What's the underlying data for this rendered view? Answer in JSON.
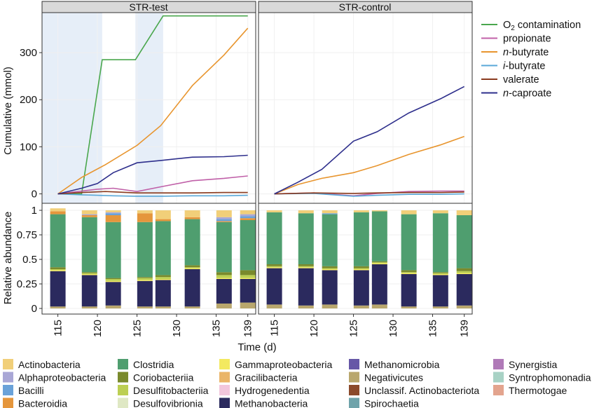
{
  "chart_data": [
    {
      "type": "line",
      "facets": [
        "STR-test",
        "STR-control"
      ],
      "ylabel": "Cumulative (mmol)",
      "xlim": [
        113,
        140
      ],
      "ylim": [
        -20,
        385
      ],
      "yticks": [
        0,
        100,
        200,
        300
      ],
      "shaded_x_ranges": {
        "STR-test": [
          [
            113,
            120.6
          ],
          [
            124.8,
            128.3
          ]
        ],
        "STR-control": []
      },
      "legend_position": "right",
      "series": [
        {
          "name": "O2 contamination",
          "label_main": "O",
          "label_sub": "2",
          "label_rest": " contamination",
          "italic_prefix": "",
          "color": "#4aa74d",
          "test": [
            [
              115,
              0
            ],
            [
              118,
              0
            ],
            [
              120.6,
              285
            ],
            [
              124.8,
              285
            ],
            [
              128.3,
              378
            ],
            [
              139,
              378
            ]
          ],
          "control": []
        },
        {
          "name": "propionate",
          "label_main": "",
          "label_sub": "",
          "label_rest": "propionate",
          "italic_prefix": "",
          "color": "#c060a8",
          "test": [
            [
              115,
              0
            ],
            [
              120,
              10
            ],
            [
              122,
              12
            ],
            [
              125,
              5
            ],
            [
              128,
              15
            ],
            [
              132,
              28
            ],
            [
              136,
              33
            ],
            [
              139,
              38
            ]
          ],
          "control": [
            [
              115,
              0
            ],
            [
              120,
              2
            ],
            [
              125,
              -4
            ],
            [
              128,
              1
            ],
            [
              132,
              5
            ],
            [
              136,
              6
            ],
            [
              139,
              6
            ]
          ]
        },
        {
          "name": "n-butyrate",
          "label_main": "",
          "label_sub": "",
          "label_rest": "-butyrate",
          "italic_prefix": "n",
          "color": "#e8952e",
          "test": [
            [
              115,
              0
            ],
            [
              118,
              35
            ],
            [
              121,
              62
            ],
            [
              125,
              103
            ],
            [
              128,
              145
            ],
            [
              132,
              230
            ],
            [
              136,
              295
            ],
            [
              139,
              352
            ]
          ],
          "control": [
            [
              115,
              0
            ],
            [
              118,
              20
            ],
            [
              121,
              33
            ],
            [
              125,
              45
            ],
            [
              128,
              60
            ],
            [
              132,
              84
            ],
            [
              136,
              104
            ],
            [
              139,
              122
            ]
          ]
        },
        {
          "name": "i-butyrate",
          "label_main": "",
          "label_sub": "",
          "label_rest": "-butyrate",
          "italic_prefix": "i",
          "color": "#5aa8d8",
          "test": [
            [
              115,
              0
            ],
            [
              118,
              -2
            ],
            [
              122,
              -4
            ],
            [
              125,
              -5
            ],
            [
              128,
              -5
            ],
            [
              132,
              -4
            ],
            [
              136,
              -4
            ],
            [
              139,
              -3
            ]
          ],
          "control": [
            [
              115,
              0
            ],
            [
              120,
              1
            ],
            [
              125,
              -5
            ],
            [
              128,
              -3
            ],
            [
              132,
              -1
            ],
            [
              136,
              -1
            ],
            [
              139,
              0
            ]
          ]
        },
        {
          "name": "valerate",
          "label_main": "",
          "label_sub": "",
          "label_rest": "valerate",
          "italic_prefix": "",
          "color": "#8a3a1e",
          "test": [
            [
              115,
              0
            ],
            [
              118,
              3
            ],
            [
              121,
              5
            ],
            [
              125,
              2
            ],
            [
              128,
              2
            ],
            [
              132,
              2
            ],
            [
              136,
              3
            ],
            [
              139,
              3
            ]
          ],
          "control": [
            [
              115,
              0
            ],
            [
              120,
              2
            ],
            [
              125,
              1
            ],
            [
              128,
              2
            ],
            [
              132,
              3
            ],
            [
              136,
              3
            ],
            [
              139,
              4
            ]
          ]
        },
        {
          "name": "n-caproate",
          "label_main": "",
          "label_sub": "",
          "label_rest": "-caproate",
          "italic_prefix": "n",
          "color": "#2e2f8c",
          "test": [
            [
              115,
              0
            ],
            [
              118,
              12
            ],
            [
              120,
              22
            ],
            [
              122,
              45
            ],
            [
              125,
              66
            ],
            [
              128,
              71
            ],
            [
              132,
              78
            ],
            [
              136,
              79
            ],
            [
              139,
              82
            ]
          ],
          "control": [
            [
              115,
              0
            ],
            [
              118,
              25
            ],
            [
              121,
              52
            ],
            [
              125,
              112
            ],
            [
              128,
              132
            ],
            [
              132,
              172
            ],
            [
              136,
              202
            ],
            [
              139,
              228
            ]
          ]
        }
      ]
    },
    {
      "type": "bar",
      "stacked": true,
      "facets": [
        "STR-test",
        "STR-control"
      ],
      "xlabel": "Time (d)",
      "ylabel": "Relative abundance",
      "xticks": [
        115,
        120,
        125,
        130,
        135,
        139
      ],
      "ylim": [
        0,
        1.05
      ],
      "yticks": [
        0,
        0.25,
        0.5,
        0.75,
        1
      ],
      "ytick_labels": [
        "0",
        "0.25",
        "0.5",
        "0.75",
        "1"
      ],
      "legend_position": "bottom",
      "categories": [
        "Actinobacteria",
        "Alphaproteobacteria",
        "Bacilli",
        "Bacteroidia",
        "Clostridia",
        "Coriobacteriia",
        "Desulfitobacteriia",
        "Desulfovibrionia",
        "Gammaproteobacteria",
        "Gracilibacteria",
        "Hydrogenedentia",
        "Methanobacteria",
        "Methanomicrobia",
        "Negativicutes",
        "Unclassif. Actinobacteriota",
        "Spirochaetia",
        "Synergistia",
        "Syntrophomonadia",
        "Thermotogae"
      ],
      "colors": {
        "Actinobacteria": "#f1cf79",
        "Alphaproteobacteria": "#a9a7d6",
        "Bacilli": "#6aa2d9",
        "Bacteroidia": "#e5963c",
        "Clostridia": "#4f9e6f",
        "Coriobacteriia": "#7a8a2c",
        "Desulfitobacteriia": "#bccf53",
        "Desulfovibrionia": "#dfe8c4",
        "Gammaproteobacteria": "#f3e960",
        "Gracilibacteria": "#eab568",
        "Hydrogenedentia": "#f2c6dc",
        "Methanobacteria": "#2b2a5e",
        "Methanomicrobia": "#6657a7",
        "Negativicutes": "#b9a76d",
        "Unclassif. Actinobacteriota": "#8b4a2b",
        "Spirochaetia": "#6fa3aa",
        "Synergistia": "#b07ab8",
        "Syntrophomonadia": "#a8d2c5",
        "Thermotogae": "#e3a48e"
      },
      "stack_order": [
        "Negativicutes",
        "Methanobacteria",
        "Gammaproteobacteria",
        "Desulfitobacteriia",
        "Coriobacteriia",
        "Clostridia",
        "Bacteroidia",
        "Bacilli",
        "Alphaproteobacteria",
        "Actinobacteria"
      ],
      "samples": {
        "STR-test": [
          {
            "day": 115,
            "Negativicutes": 0.02,
            "Methanobacteria": 0.36,
            "Gammaproteobacteria": 0.01,
            "Desulfitobacteriia": 0.01,
            "Coriobacteriia": 0.02,
            "Clostridia": 0.54,
            "Bacteroidia": 0.03,
            "Bacilli": 0.0,
            "Alphaproteobacteria": 0.0,
            "Actinobacteria": 0.03
          },
          {
            "day": 119,
            "Negativicutes": 0.02,
            "Methanobacteria": 0.32,
            "Gammaproteobacteria": 0.01,
            "Desulfitobacteriia": 0.01,
            "Coriobacteriia": 0.01,
            "Clostridia": 0.56,
            "Bacteroidia": 0.02,
            "Bacilli": 0.0,
            "Alphaproteobacteria": 0.01,
            "Actinobacteria": 0.04
          },
          {
            "day": 122,
            "Negativicutes": 0.03,
            "Methanobacteria": 0.24,
            "Gammaproteobacteria": 0.01,
            "Desulfitobacteriia": 0.02,
            "Coriobacteriia": 0.01,
            "Clostridia": 0.57,
            "Bacteroidia": 0.07,
            "Bacilli": 0.02,
            "Alphaproteobacteria": 0.01,
            "Actinobacteria": 0.02
          },
          {
            "day": 126,
            "Negativicutes": 0.02,
            "Methanobacteria": 0.26,
            "Gammaproteobacteria": 0.01,
            "Desulfitobacteriia": 0.02,
            "Coriobacteriia": 0.01,
            "Clostridia": 0.56,
            "Bacteroidia": 0.09,
            "Bacilli": 0.0,
            "Alphaproteobacteria": 0.0,
            "Actinobacteria": 0.03
          },
          {
            "day": 128.3,
            "Negativicutes": 0.02,
            "Methanobacteria": 0.27,
            "Gammaproteobacteria": 0.01,
            "Desulfitobacteriia": 0.02,
            "Coriobacteriia": 0.02,
            "Clostridia": 0.55,
            "Bacteroidia": 0.02,
            "Bacilli": 0.0,
            "Alphaproteobacteria": 0.0,
            "Actinobacteria": 0.09
          },
          {
            "day": 132,
            "Negativicutes": 0.02,
            "Methanobacteria": 0.38,
            "Gammaproteobacteria": 0.01,
            "Desulfitobacteriia": 0.01,
            "Coriobacteriia": 0.02,
            "Clostridia": 0.47,
            "Bacteroidia": 0.02,
            "Bacilli": 0.0,
            "Alphaproteobacteria": 0.0,
            "Actinobacteria": 0.07
          },
          {
            "day": 136,
            "Negativicutes": 0.05,
            "Methanobacteria": 0.25,
            "Gammaproteobacteria": 0.01,
            "Desulfitobacteriia": 0.03,
            "Coriobacteriia": 0.03,
            "Clostridia": 0.51,
            "Bacteroidia": 0.01,
            "Bacilli": 0.02,
            "Alphaproteobacteria": 0.02,
            "Actinobacteria": 0.07
          },
          {
            "day": 139,
            "Negativicutes": 0.06,
            "Methanobacteria": 0.24,
            "Gammaproteobacteria": 0.01,
            "Desulfitobacteriia": 0.03,
            "Coriobacteriia": 0.05,
            "Clostridia": 0.51,
            "Bacteroidia": 0.02,
            "Bacilli": 0.02,
            "Alphaproteobacteria": 0.02,
            "Actinobacteria": 0.04
          }
        ],
        "STR-control": [
          {
            "day": 115,
            "Negativicutes": 0.04,
            "Methanobacteria": 0.37,
            "Gammaproteobacteria": 0.01,
            "Desulfitobacteriia": 0.01,
            "Coriobacteriia": 0.02,
            "Clostridia": 0.53,
            "Bacteroidia": 0.0,
            "Bacilli": 0.0,
            "Alphaproteobacteria": 0.0,
            "Actinobacteria": 0.02
          },
          {
            "day": 119,
            "Negativicutes": 0.03,
            "Methanobacteria": 0.38,
            "Gammaproteobacteria": 0.01,
            "Desulfitobacteriia": 0.01,
            "Coriobacteriia": 0.02,
            "Clostridia": 0.52,
            "Bacteroidia": 0.0,
            "Bacilli": 0.0,
            "Alphaproteobacteria": 0.0,
            "Actinobacteria": 0.03
          },
          {
            "day": 122,
            "Negativicutes": 0.04,
            "Methanobacteria": 0.35,
            "Gammaproteobacteria": 0.01,
            "Desulfitobacteriia": 0.01,
            "Coriobacteriia": 0.02,
            "Clostridia": 0.53,
            "Bacteroidia": 0.0,
            "Bacilli": 0.01,
            "Alphaproteobacteria": 0.0,
            "Actinobacteria": 0.03
          },
          {
            "day": 126,
            "Negativicutes": 0.03,
            "Methanobacteria": 0.36,
            "Gammaproteobacteria": 0.01,
            "Desulfitobacteriia": 0.01,
            "Coriobacteriia": 0.02,
            "Clostridia": 0.55,
            "Bacteroidia": 0.0,
            "Bacilli": 0.0,
            "Alphaproteobacteria": 0.0,
            "Actinobacteria": 0.02
          },
          {
            "day": 128.3,
            "Negativicutes": 0.04,
            "Methanobacteria": 0.41,
            "Gammaproteobacteria": 0.01,
            "Desulfitobacteriia": 0.01,
            "Coriobacteriia": 0.01,
            "Clostridia": 0.51,
            "Bacteroidia": 0.0,
            "Bacilli": 0.0,
            "Alphaproteobacteria": 0.0,
            "Actinobacteria": 0.01
          },
          {
            "day": 132,
            "Negativicutes": 0.02,
            "Methanobacteria": 0.33,
            "Gammaproteobacteria": 0.01,
            "Desulfitobacteriia": 0.01,
            "Coriobacteriia": 0.02,
            "Clostridia": 0.57,
            "Bacteroidia": 0.0,
            "Bacilli": 0.0,
            "Alphaproteobacteria": 0.0,
            "Actinobacteria": 0.04
          },
          {
            "day": 136,
            "Negativicutes": 0.02,
            "Methanobacteria": 0.32,
            "Gammaproteobacteria": 0.01,
            "Desulfitobacteriia": 0.01,
            "Coriobacteriia": 0.01,
            "Clostridia": 0.6,
            "Bacteroidia": 0.0,
            "Bacilli": 0.0,
            "Alphaproteobacteria": 0.0,
            "Actinobacteria": 0.03
          },
          {
            "day": 139,
            "Negativicutes": 0.03,
            "Methanobacteria": 0.32,
            "Gammaproteobacteria": 0.01,
            "Desulfitobacteriia": 0.02,
            "Coriobacteriia": 0.03,
            "Clostridia": 0.54,
            "Bacteroidia": 0.0,
            "Bacilli": 0.0,
            "Alphaproteobacteria": 0.0,
            "Actinobacteria": 0.05
          }
        ]
      }
    }
  ]
}
